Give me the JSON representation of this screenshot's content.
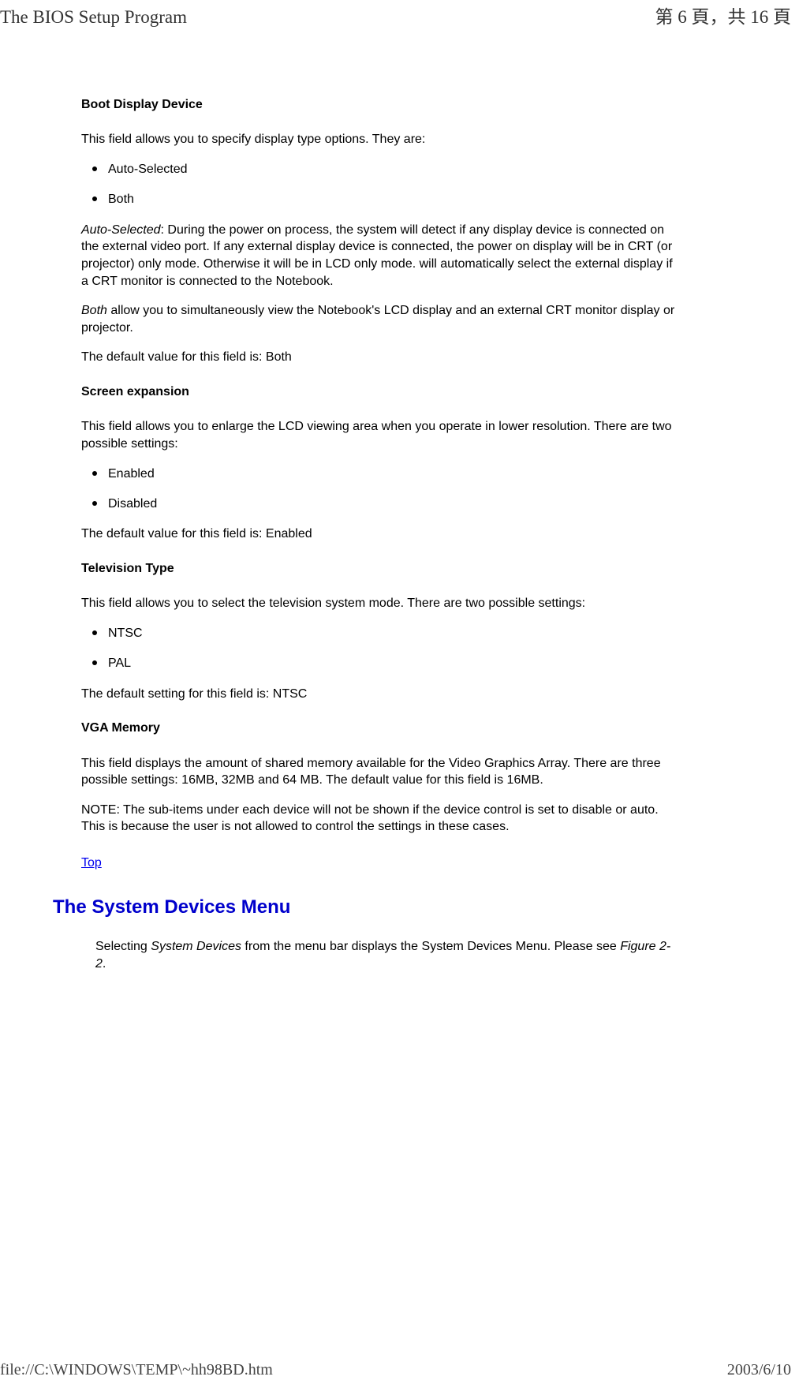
{
  "header": {
    "title": "The BIOS Setup Program",
    "page_info": "第 6 頁，共 16 頁"
  },
  "sections": {
    "boot_display": {
      "title": "Boot Display Device",
      "intro": "This field allows you to specify display type options. They are:",
      "option1": "Auto-Selected",
      "option2": "Both",
      "auto_label": "Auto-Selected",
      "auto_text": ": During the power on process, the system will detect if any display device is connected on the external video port. If any external display device is connected, the power on display will be in CRT (or projector) only mode. Otherwise it will be in LCD only mode. will automatically select the external display if a CRT monitor is connected to the Notebook.",
      "both_label": "Both",
      "both_text": " allow you to simultaneously view the Notebook's LCD display and an external CRT monitor display or projector.",
      "default": "The default value for this field is: Both"
    },
    "screen_expansion": {
      "title": "Screen expansion",
      "intro": "This field allows you to enlarge the LCD viewing area when you operate in lower resolution. There are two possible settings:",
      "option1": "Enabled",
      "option2": "Disabled",
      "default": "The default value for this field is: Enabled"
    },
    "television": {
      "title": "Television Type",
      "intro": "This field allows you to select the television system mode. There are two possible settings:",
      "option1": "NTSC",
      "option2": "PAL",
      "default": "The default setting for this field is: NTSC"
    },
    "vga": {
      "title": "VGA Memory",
      "text": "This field displays the amount of shared memory available for the Video Graphics Array. There are three possible settings: 16MB, 32MB and 64 MB. The default value for this field is 16MB.",
      "note": "NOTE: The sub-items under each device will not be shown if the device control is set to disable or auto. This is because the user is not allowed to control the settings in these cases."
    },
    "top_link": "Top",
    "devices_menu": {
      "heading": "The System Devices Menu",
      "text_pre": "Selecting ",
      "text_italic": "System Devices",
      "text_post": " from the menu bar displays the System Devices Menu. Please see ",
      "figure": "Figure 2-2",
      "period": "."
    }
  },
  "footer": {
    "left": "file://C:\\WINDOWS\\TEMP\\~hh98BD.htm",
    "right": "2003/6/10"
  }
}
